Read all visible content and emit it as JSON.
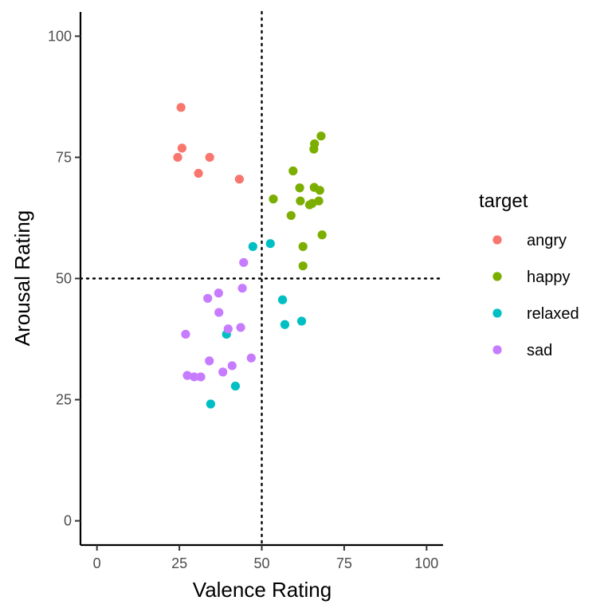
{
  "chart_data": {
    "type": "scatter",
    "xlabel": "Valence Rating",
    "ylabel": "Arousal Rating",
    "xlim": [
      -5,
      105
    ],
    "ylim": [
      -5,
      105
    ],
    "x_ticks": [
      "0",
      "25",
      "50",
      "75",
      "100"
    ],
    "y_ticks": [
      "0",
      "25",
      "50",
      "75",
      "100"
    ],
    "reference_lines": {
      "x": 50,
      "y": 50,
      "style": "dotted"
    },
    "grid": false,
    "legend": {
      "title": "target",
      "placement": "right",
      "entries": [
        "angry",
        "happy",
        "relaxed",
        "sad"
      ]
    },
    "series": [
      {
        "name": "angry",
        "color": "#F8766D",
        "points": [
          [
            25.5,
            85.3
          ],
          [
            25.8,
            76.9
          ],
          [
            24.5,
            75.0
          ],
          [
            34.2,
            75.0
          ],
          [
            30.8,
            71.7
          ],
          [
            43.2,
            70.5
          ]
        ]
      },
      {
        "name": "happy",
        "color": "#7CAE00",
        "points": [
          [
            68.0,
            79.4
          ],
          [
            66.0,
            77.8
          ],
          [
            65.8,
            76.7
          ],
          [
            59.5,
            72.2
          ],
          [
            61.5,
            68.7
          ],
          [
            65.9,
            68.8
          ],
          [
            67.6,
            68.2
          ],
          [
            53.5,
            66.4
          ],
          [
            61.7,
            66.0
          ],
          [
            67.3,
            66.0
          ],
          [
            65.3,
            65.5
          ],
          [
            64.5,
            65.2
          ],
          [
            58.9,
            63.0
          ],
          [
            68.3,
            59.0
          ],
          [
            62.5,
            56.6
          ],
          [
            62.5,
            52.6
          ]
        ]
      },
      {
        "name": "relaxed",
        "color": "#00BFC4",
        "points": [
          [
            47.3,
            56.6
          ],
          [
            52.6,
            57.2
          ],
          [
            56.3,
            45.6
          ],
          [
            57.0,
            40.5
          ],
          [
            62.1,
            41.2
          ],
          [
            39.3,
            38.5
          ],
          [
            42.0,
            27.8
          ],
          [
            34.5,
            24.1
          ]
        ]
      },
      {
        "name": "sad",
        "color": "#C77CFF",
        "points": [
          [
            44.5,
            53.3
          ],
          [
            44.1,
            48.0
          ],
          [
            36.9,
            47.0
          ],
          [
            33.6,
            45.9
          ],
          [
            37.0,
            43.0
          ],
          [
            39.8,
            39.6
          ],
          [
            43.6,
            39.9
          ],
          [
            26.9,
            38.5
          ],
          [
            46.8,
            33.6
          ],
          [
            34.1,
            33.0
          ],
          [
            41.0,
            32.0
          ],
          [
            38.2,
            30.7
          ],
          [
            27.4,
            30.0
          ],
          [
            29.5,
            29.7
          ],
          [
            31.5,
            29.7
          ]
        ]
      }
    ]
  }
}
